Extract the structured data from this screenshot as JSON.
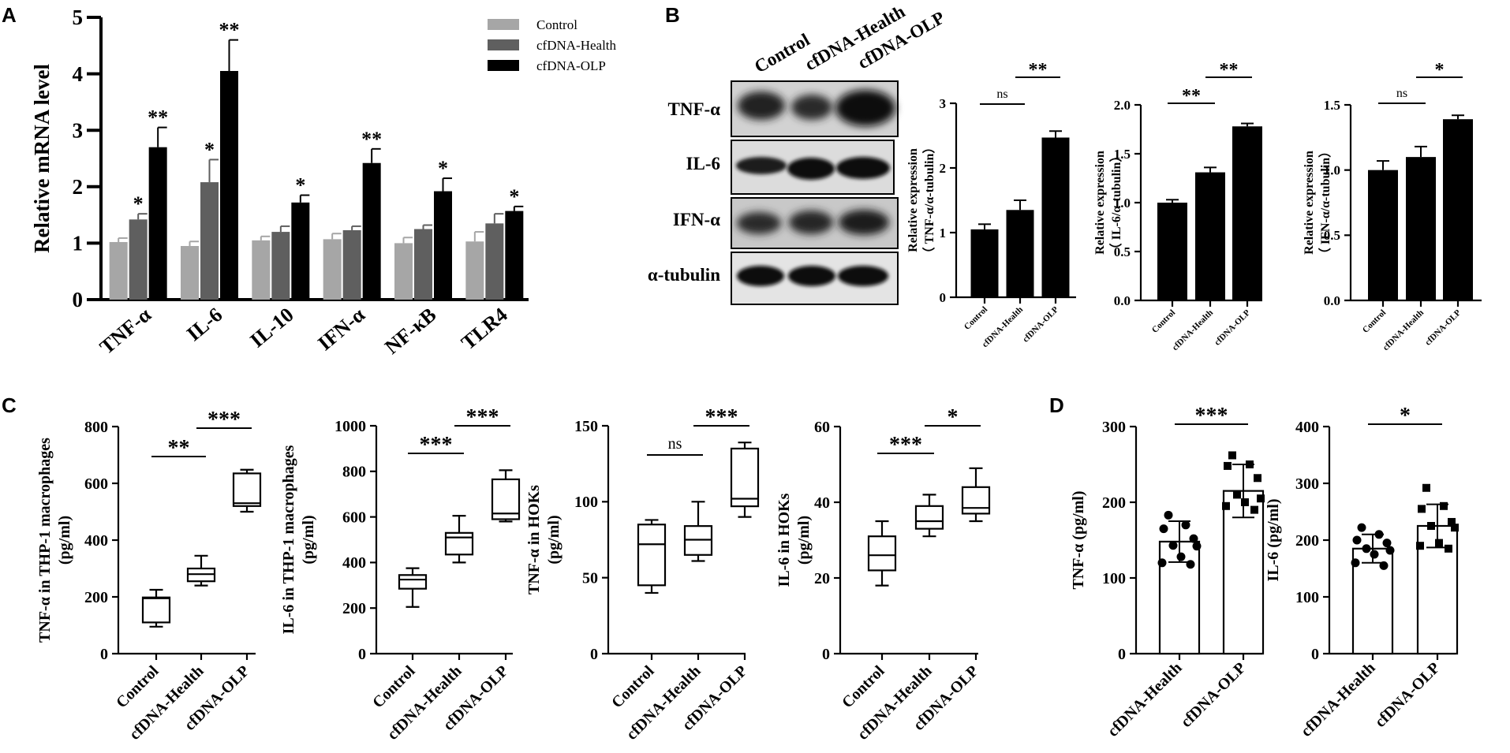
{
  "panel_letters": [
    "A",
    "B",
    "C",
    "D"
  ],
  "colors": {
    "control": "#a6a6a6",
    "health": "#5f5f5f",
    "olp": "#000000"
  },
  "chart_data": [
    {
      "id": "A",
      "type": "bar",
      "ylabel": "Relative mRNA level",
      "ylim": [
        0,
        5
      ],
      "yticks": [
        0,
        1,
        2,
        3,
        4,
        5
      ],
      "categories": [
        "TNF-α",
        "IL-6",
        "IL-10",
        "IFN-α",
        "NF-κB",
        "TLR4"
      ],
      "legend_position": "top-right",
      "series": [
        {
          "name": "Control",
          "color": "#a6a6a6",
          "values": [
            1.02,
            0.95,
            1.05,
            1.07,
            1.0,
            1.03
          ],
          "errors": [
            0.07,
            0.08,
            0.07,
            0.1,
            0.1,
            0.17
          ]
        },
        {
          "name": "cfDNA-Health",
          "color": "#5f5f5f",
          "values": [
            1.42,
            2.08,
            1.2,
            1.23,
            1.25,
            1.35
          ],
          "errors": [
            0.1,
            0.4,
            0.1,
            0.07,
            0.07,
            0.17
          ]
        },
        {
          "name": "cfDNA-OLP",
          "color": "#000000",
          "values": [
            2.7,
            4.05,
            1.72,
            2.42,
            1.92,
            1.57
          ],
          "errors": [
            0.35,
            0.55,
            0.13,
            0.25,
            0.23,
            0.08
          ]
        }
      ],
      "annotations": [
        {
          "category": 0,
          "series": 1,
          "text": "*"
        },
        {
          "category": 0,
          "series": 2,
          "text": "**"
        },
        {
          "category": 1,
          "series": 1,
          "text": "*"
        },
        {
          "category": 1,
          "series": 2,
          "text": "**"
        },
        {
          "category": 2,
          "series": 2,
          "text": "*"
        },
        {
          "category": 3,
          "series": 2,
          "text": "**"
        },
        {
          "category": 4,
          "series": 2,
          "text": "*"
        },
        {
          "category": 5,
          "series": 2,
          "text": "*"
        }
      ]
    },
    {
      "id": "B1",
      "type": "bar",
      "ylabel": "Relative expression",
      "ylabel2": "（ TNF-α/α-tubulin）",
      "ylim": [
        0,
        3
      ],
      "yticks": [
        0,
        1,
        2,
        3
      ],
      "ytick_labels": [
        "0",
        "1",
        "2",
        "3"
      ],
      "categories": [
        "Control",
        "cfDNA-Health",
        "cfDNA-OLP"
      ],
      "values": [
        1.05,
        1.35,
        2.47
      ],
      "errors": [
        0.08,
        0.15,
        0.1
      ],
      "comparisons": [
        {
          "from": 0,
          "to": 1,
          "text": "ns"
        },
        {
          "from": 1,
          "to": 2,
          "text": "**"
        }
      ]
    },
    {
      "id": "B2",
      "type": "bar",
      "ylabel": "Relative expression",
      "ylabel2": "（ IL-6/α-tubulin）",
      "ylim": [
        0,
        2
      ],
      "yticks": [
        0,
        0.5,
        1,
        1.5,
        2
      ],
      "ytick_labels": [
        "0.0",
        "0.5",
        "1.0",
        "1.5",
        "2.0"
      ],
      "categories": [
        "Control",
        "cfDNA-Health",
        "cfDNA-OLP"
      ],
      "values": [
        1.0,
        1.31,
        1.78
      ],
      "errors": [
        0.03,
        0.05,
        0.03
      ],
      "comparisons": [
        {
          "from": 0,
          "to": 1,
          "text": "**"
        },
        {
          "from": 1,
          "to": 2,
          "text": "**"
        }
      ]
    },
    {
      "id": "B3",
      "type": "bar",
      "ylabel": "Relative expression",
      "ylabel2": "（ IFN-α/α-tubulin）",
      "ylim": [
        0,
        1.5
      ],
      "yticks": [
        0,
        0.5,
        1,
        1.5
      ],
      "ytick_labels": [
        "0.0",
        "0.5",
        "1.0",
        "1.5"
      ],
      "categories": [
        "Control",
        "cfDNA-Health",
        "cfDNA-OLP"
      ],
      "values": [
        1.0,
        1.1,
        1.39
      ],
      "errors": [
        0.07,
        0.08,
        0.03
      ],
      "comparisons": [
        {
          "from": 0,
          "to": 1,
          "text": "ns"
        },
        {
          "from": 1,
          "to": 2,
          "text": "*"
        }
      ]
    },
    {
      "id": "C1",
      "type": "box",
      "ylabel": "TNF-α in THP-1 macrophages",
      "ylabel2": "(pg/ml)",
      "ylim": [
        0,
        800
      ],
      "yticks": [
        0,
        200,
        400,
        600,
        800
      ],
      "categories": [
        "Control",
        "cfDNA-Health",
        "cfDNA-OLP"
      ],
      "boxes": [
        {
          "min": 95,
          "q1": 110,
          "median": 195,
          "q3": 198,
          "max": 225
        },
        {
          "min": 240,
          "q1": 255,
          "median": 280,
          "q3": 300,
          "max": 345
        },
        {
          "min": 500,
          "q1": 520,
          "median": 530,
          "q3": 635,
          "max": 648
        }
      ],
      "comparisons": [
        {
          "from": 0,
          "to": 1,
          "text": "**"
        },
        {
          "from": 1,
          "to": 2,
          "text": "***"
        }
      ]
    },
    {
      "id": "C2",
      "type": "box",
      "ylabel": "IL-6 in THP-1 macrophages",
      "ylabel2": "(pg/ml)",
      "ylim": [
        0,
        1000
      ],
      "yticks": [
        0,
        200,
        400,
        600,
        800,
        1000
      ],
      "categories": [
        "Control",
        "cfDNA-Health",
        "cfDNA-OLP"
      ],
      "boxes": [
        {
          "min": 205,
          "q1": 285,
          "median": 325,
          "q3": 345,
          "max": 375
        },
        {
          "min": 400,
          "q1": 435,
          "median": 510,
          "q3": 530,
          "max": 605
        },
        {
          "min": 580,
          "q1": 590,
          "median": 615,
          "q3": 765,
          "max": 805
        }
      ],
      "comparisons": [
        {
          "from": 0,
          "to": 1,
          "text": "***"
        },
        {
          "from": 1,
          "to": 2,
          "text": "***"
        }
      ]
    },
    {
      "id": "C3",
      "type": "box",
      "ylabel": "TNF-α in HOKs",
      "ylabel2": "(pg/ml)",
      "ylim": [
        0,
        150
      ],
      "yticks": [
        0,
        50,
        100,
        150
      ],
      "categories": [
        "Control",
        "cfDNA-Health",
        "cfDNA-OLP"
      ],
      "boxes": [
        {
          "min": 40,
          "q1": 45,
          "median": 72,
          "q3": 85,
          "max": 88
        },
        {
          "min": 61,
          "q1": 65,
          "median": 75,
          "q3": 84,
          "max": 100
        },
        {
          "min": 90,
          "q1": 97,
          "median": 102,
          "q3": 135,
          "max": 139
        }
      ],
      "comparisons": [
        {
          "from": 0,
          "to": 1,
          "text": "ns"
        },
        {
          "from": 1,
          "to": 2,
          "text": "***"
        }
      ]
    },
    {
      "id": "C4",
      "type": "box",
      "ylabel": "IL-6 in HOKs",
      "ylabel2": "(pg/ml)",
      "ylim": [
        0,
        60
      ],
      "yticks": [
        0,
        20,
        40,
        60
      ],
      "categories": [
        "Control",
        "cfDNA-Health",
        "cfDNA-OLP"
      ],
      "boxes": [
        {
          "min": 18,
          "q1": 22,
          "median": 26,
          "q3": 31,
          "max": 35
        },
        {
          "min": 31,
          "q1": 33,
          "median": 35,
          "q3": 39,
          "max": 42
        },
        {
          "min": 35,
          "q1": 37,
          "median": 38.5,
          "q3": 44,
          "max": 49
        }
      ],
      "comparisons": [
        {
          "from": 0,
          "to": 1,
          "text": "***"
        },
        {
          "from": 1,
          "to": 2,
          "text": "*"
        }
      ]
    },
    {
      "id": "D1",
      "type": "bar",
      "ylabel": "TNF-α (pg/ml)",
      "ylim": [
        0,
        300
      ],
      "yticks": [
        0,
        100,
        200,
        300
      ],
      "categories": [
        "cfDNA-Health",
        "cfDNA-OLP"
      ],
      "values": [
        148,
        215
      ],
      "errors": [
        27,
        35
      ],
      "points": [
        [
          183,
          170,
          165,
          152,
          143,
          142,
          128,
          120,
          118
        ],
        [
          262,
          250,
          248,
          232,
          210,
          205,
          200,
          195,
          190
        ]
      ],
      "comparisons": [
        {
          "from": 0,
          "to": 1,
          "text": "***"
        }
      ]
    },
    {
      "id": "D2",
      "type": "bar",
      "ylabel": "IL-6 (pg/ml)",
      "ylim": [
        0,
        400
      ],
      "yticks": [
        0,
        100,
        200,
        300,
        400
      ],
      "categories": [
        "cfDNA-Health",
        "cfDNA-OLP"
      ],
      "values": [
        185,
        225
      ],
      "errors": [
        25,
        38
      ],
      "points": [
        [
          222,
          210,
          200,
          195,
          185,
          182,
          175,
          160,
          155
        ],
        [
          292,
          260,
          255,
          232,
          225,
          222,
          195,
          190,
          185
        ]
      ],
      "comparisons": [
        {
          "from": 0,
          "to": 1,
          "text": "*"
        }
      ]
    }
  ],
  "blot": {
    "header": [
      "Control",
      "cfDNA-Health",
      "cfDNA-OLP"
    ],
    "rows": [
      "TNF-α",
      "IL-6",
      "IFN-α",
      "α-tubulin"
    ]
  }
}
